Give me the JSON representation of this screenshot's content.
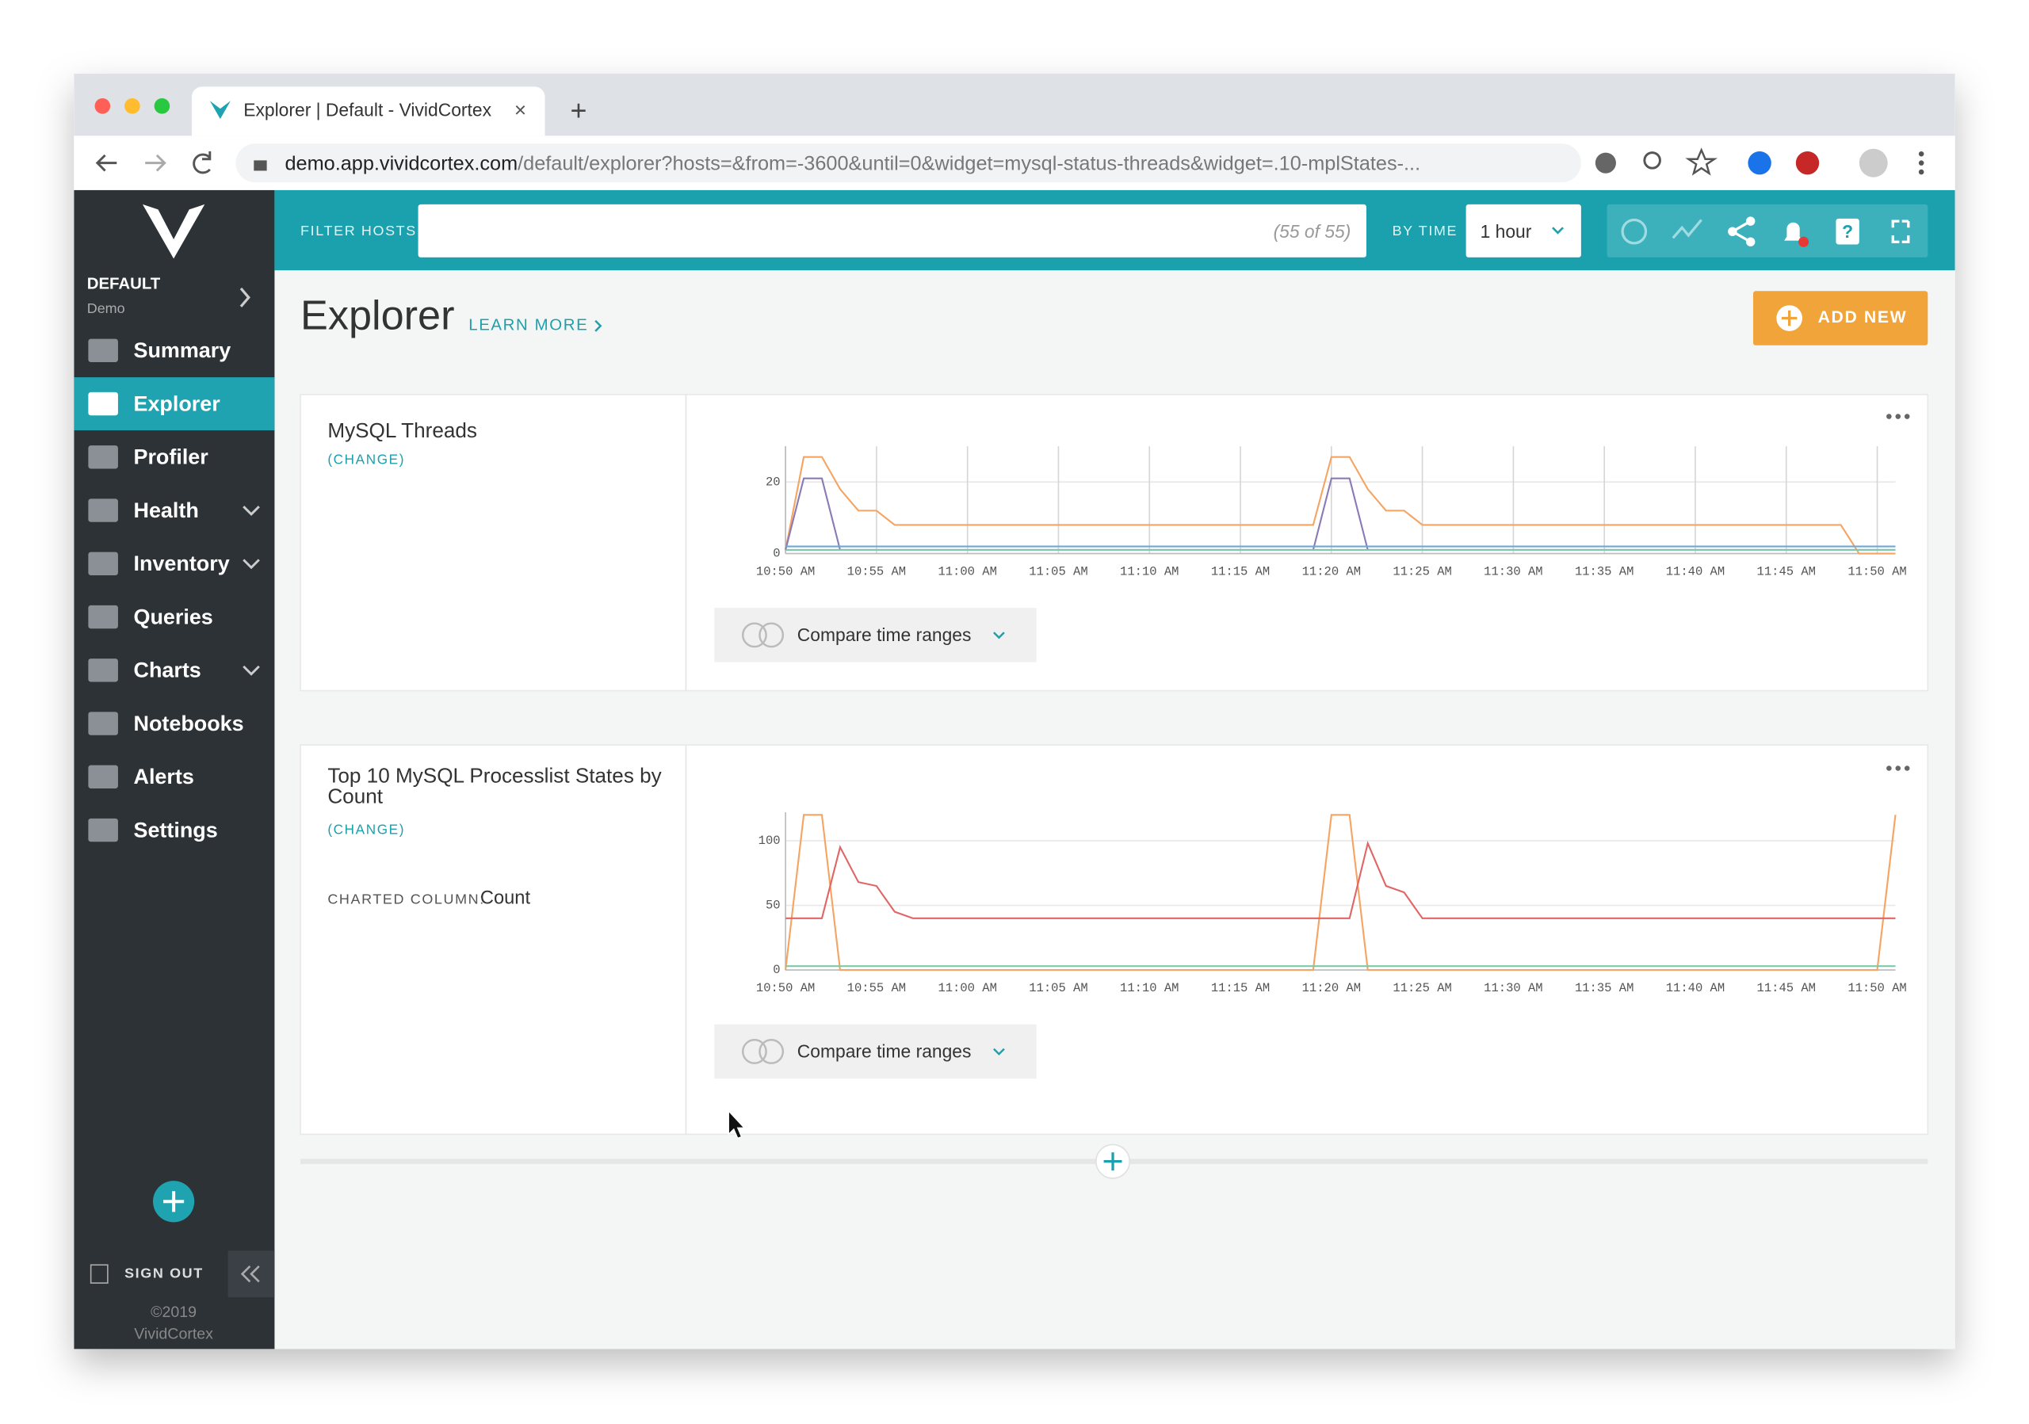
{
  "browser": {
    "tab_title": "Explorer | Default - VividCortex",
    "url_host": "demo.app.vividcortex.com",
    "url_path": "/default/explorer?hosts=&from=-3600&until=0&widget=mysql-status-threads&widget=.10-mplStates-..."
  },
  "sidebar": {
    "org": "DEFAULT",
    "env": "Demo",
    "active": 1,
    "items": [
      {
        "label": "Summary"
      },
      {
        "label": "Explorer"
      },
      {
        "label": "Profiler"
      },
      {
        "label": "Health",
        "expandable": true
      },
      {
        "label": "Inventory",
        "expandable": true
      },
      {
        "label": "Queries"
      },
      {
        "label": "Charts",
        "expandable": true
      },
      {
        "label": "Notebooks"
      },
      {
        "label": "Alerts"
      },
      {
        "label": "Settings"
      }
    ],
    "sign_out": "SIGN OUT",
    "copyright": "©2019",
    "company": "VividCortex"
  },
  "topbar": {
    "filter_label": "FILTER HOSTS",
    "host_count": "(55 of 55)",
    "time_label": "BY TIME",
    "time_value": "1 hour"
  },
  "page": {
    "title": "Explorer",
    "learn_more": "LEARN MORE",
    "add_new": "ADD NEW"
  },
  "widgets": [
    {
      "title": "MySQL Threads",
      "change": "(CHANGE)",
      "compare": "Compare time ranges",
      "chart_data": {
        "type": "line",
        "xlim": [
          0,
          61
        ],
        "ylim": [
          0,
          30
        ],
        "yticks": [
          0,
          20
        ],
        "xgrid": true,
        "xticks": [
          {
            "value": 0,
            "label": "10:50 AM"
          },
          {
            "value": 5,
            "label": "10:55 AM"
          },
          {
            "value": 10,
            "label": "11:00 AM"
          },
          {
            "value": 15,
            "label": "11:05 AM"
          },
          {
            "value": 20,
            "label": "11:10 AM"
          },
          {
            "value": 25,
            "label": "11:15 AM"
          },
          {
            "value": 30,
            "label": "11:20 AM"
          },
          {
            "value": 35,
            "label": "11:25 AM"
          },
          {
            "value": 40,
            "label": "11:30 AM"
          },
          {
            "value": 45,
            "label": "11:35 AM"
          },
          {
            "value": 50,
            "label": "11:40 AM"
          },
          {
            "value": 55,
            "label": "11:45 AM"
          },
          {
            "value": 60,
            "label": "11:50 AM"
          }
        ],
        "series": [
          {
            "color": "#f5a462",
            "values": [
              1,
              27,
              27,
              18,
              12,
              12,
              8,
              8,
              8,
              8,
              8,
              8,
              8,
              8,
              8,
              8,
              8,
              8,
              8,
              8,
              8,
              8,
              8,
              8,
              8,
              8,
              8,
              8,
              8,
              8,
              27,
              27,
              18,
              12,
              12,
              8,
              8,
              8,
              8,
              8,
              8,
              8,
              8,
              8,
              8,
              8,
              8,
              8,
              8,
              8,
              8,
              8,
              8,
              8,
              8,
              8,
              8,
              8,
              8,
              0,
              0,
              0
            ]
          },
          {
            "color": "#8a7bb5",
            "values": [
              1,
              21,
              21,
              1,
              1,
              1,
              1,
              1,
              1,
              1,
              1,
              1,
              1,
              1,
              1,
              1,
              1,
              1,
              1,
              1,
              1,
              1,
              1,
              1,
              1,
              1,
              1,
              1,
              1,
              1,
              21,
              21,
              1,
              1,
              1,
              1,
              1,
              1,
              1,
              1,
              1,
              1,
              1,
              1,
              1,
              1,
              1,
              1,
              1,
              1,
              1,
              1,
              1,
              1,
              1,
              1,
              1,
              1,
              1,
              1,
              1,
              1
            ]
          },
          {
            "color": "#6fa8d6",
            "values": [
              2,
              2,
              2,
              2,
              2,
              2,
              2,
              2,
              2,
              2,
              2,
              2,
              2,
              2,
              2,
              2,
              2,
              2,
              2,
              2,
              2,
              2,
              2,
              2,
              2,
              2,
              2,
              2,
              2,
              2,
              2,
              2,
              2,
              2,
              2,
              2,
              2,
              2,
              2,
              2,
              2,
              2,
              2,
              2,
              2,
              2,
              2,
              2,
              2,
              2,
              2,
              2,
              2,
              2,
              2,
              2,
              2,
              2,
              2,
              2,
              2,
              2
            ]
          },
          {
            "color": "#7fc8a9",
            "values": [
              1,
              1,
              1,
              1,
              1,
              1,
              1,
              1,
              1,
              1,
              1,
              1,
              1,
              1,
              1,
              1,
              1,
              1,
              1,
              1,
              1,
              1,
              1,
              1,
              1,
              1,
              1,
              1,
              1,
              1,
              1,
              1,
              1,
              1,
              1,
              1,
              1,
              1,
              1,
              1,
              1,
              1,
              1,
              1,
              1,
              1,
              1,
              1,
              1,
              1,
              1,
              1,
              1,
              1,
              1,
              1,
              1,
              1,
              1,
              1,
              1,
              1
            ]
          }
        ]
      }
    },
    {
      "title": "Top 10 MySQL Processlist States by Count",
      "change": "(CHANGE)",
      "compare": "Compare time ranges",
      "charted_column_label": "CHARTED COLUMN:",
      "charted_column": "Count",
      "chart_data": {
        "type": "line",
        "xlim": [
          0,
          61
        ],
        "ylim": [
          0,
          122
        ],
        "yticks": [
          0,
          50,
          100
        ],
        "xgrid": false,
        "xticks": [
          {
            "value": 0,
            "label": "10:50 AM"
          },
          {
            "value": 5,
            "label": "10:55 AM"
          },
          {
            "value": 10,
            "label": "11:00 AM"
          },
          {
            "value": 15,
            "label": "11:05 AM"
          },
          {
            "value": 20,
            "label": "11:10 AM"
          },
          {
            "value": 25,
            "label": "11:15 AM"
          },
          {
            "value": 30,
            "label": "11:20 AM"
          },
          {
            "value": 35,
            "label": "11:25 AM"
          },
          {
            "value": 40,
            "label": "11:30 AM"
          },
          {
            "value": 45,
            "label": "11:35 AM"
          },
          {
            "value": 50,
            "label": "11:40 AM"
          },
          {
            "value": 55,
            "label": "11:45 AM"
          },
          {
            "value": 60,
            "label": "11:50 AM"
          }
        ],
        "series": [
          {
            "color": "#f5a462",
            "values": [
              0,
              120,
              120,
              0,
              0,
              0,
              0,
              0,
              0,
              0,
              0,
              0,
              0,
              0,
              0,
              0,
              0,
              0,
              0,
              0,
              0,
              0,
              0,
              0,
              0,
              0,
              0,
              0,
              0,
              0,
              120,
              120,
              0,
              0,
              0,
              0,
              0,
              0,
              0,
              0,
              0,
              0,
              0,
              0,
              0,
              0,
              0,
              0,
              0,
              0,
              0,
              0,
              0,
              0,
              0,
              0,
              0,
              0,
              0,
              0,
              0,
              120
            ]
          },
          {
            "color": "#e06666",
            "values": [
              40,
              40,
              40,
              95,
              68,
              65,
              45,
              40,
              40,
              40,
              40,
              40,
              40,
              40,
              40,
              40,
              40,
              40,
              40,
              40,
              40,
              40,
              40,
              40,
              40,
              40,
              40,
              40,
              40,
              40,
              40,
              40,
              98,
              65,
              60,
              40,
              40,
              40,
              40,
              40,
              40,
              40,
              40,
              40,
              40,
              40,
              40,
              40,
              40,
              40,
              40,
              40,
              40,
              40,
              40,
              40,
              40,
              40,
              40,
              40,
              40,
              40
            ]
          },
          {
            "color": "#7fc8a9",
            "values": [
              3,
              3,
              3,
              3,
              3,
              3,
              3,
              3,
              3,
              3,
              3,
              3,
              3,
              3,
              3,
              3,
              3,
              3,
              3,
              3,
              3,
              3,
              3,
              3,
              3,
              3,
              3,
              3,
              3,
              3,
              3,
              3,
              3,
              3,
              3,
              3,
              3,
              3,
              3,
              3,
              3,
              3,
              3,
              3,
              3,
              3,
              3,
              3,
              3,
              3,
              3,
              3,
              3,
              3,
              3,
              3,
              3,
              3,
              3,
              3,
              3,
              3
            ]
          }
        ]
      }
    }
  ]
}
